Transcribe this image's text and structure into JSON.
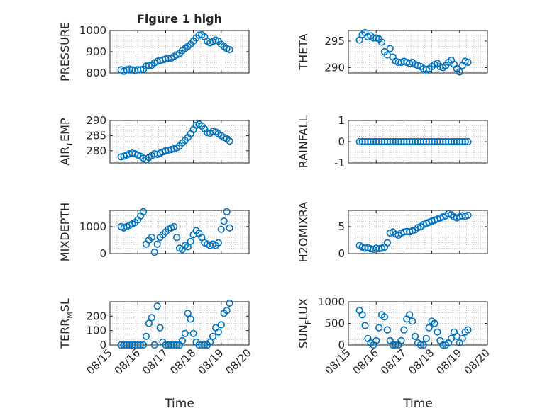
{
  "figure": {
    "title": "Figure 1 high",
    "xlabel": "Time"
  },
  "colors": {
    "marker": "#0072BD",
    "axis": "#262626",
    "grid": "#b0b0b0"
  },
  "chart_data": [
    {
      "type": "scatter",
      "title": "Figure 1 high",
      "ylabel": "PRESSURE",
      "ylabel_sub": "",
      "xlim": [
        0,
        5
      ],
      "ylim": [
        800,
        1000
      ],
      "yticks": [
        800,
        900,
        1000
      ],
      "xticks": [
        0,
        1,
        2,
        3,
        4,
        5
      ],
      "xticklabels": [
        "08/15",
        "08/16",
        "08/17",
        "08/18",
        "08/19",
        "08/20"
      ],
      "grid": true,
      "marker": "open-circle",
      "x": [
        0.4,
        0.5,
        0.6,
        0.7,
        0.8,
        0.9,
        1.0,
        1.1,
        1.2,
        1.3,
        1.4,
        1.5,
        1.6,
        1.7,
        1.8,
        1.9,
        2.0,
        2.1,
        2.2,
        2.3,
        2.4,
        2.5,
        2.6,
        2.7,
        2.8,
        2.9,
        3.0,
        3.1,
        3.2,
        3.3,
        3.4,
        3.5,
        3.6,
        3.7,
        3.8,
        3.9,
        4.0,
        4.1,
        4.2,
        4.3
      ],
      "y": [
        815,
        808,
        815,
        818,
        815,
        812,
        816,
        815,
        818,
        832,
        835,
        836,
        848,
        855,
        858,
        862,
        866,
        870,
        870,
        878,
        885,
        892,
        905,
        915,
        925,
        935,
        950,
        965,
        978,
        980,
        970,
        950,
        942,
        948,
        955,
        950,
        935,
        925,
        915,
        910
      ]
    },
    {
      "type": "scatter",
      "title": "",
      "ylabel": "THETA",
      "ylabel_sub": "",
      "xlim": [
        0,
        5
      ],
      "ylim": [
        289,
        297
      ],
      "yticks": [
        290,
        295
      ],
      "xticks": [
        0,
        1,
        2,
        3,
        4,
        5
      ],
      "xticklabels": [
        "08/15",
        "08/16",
        "08/17",
        "08/18",
        "08/19",
        "08/20"
      ],
      "grid": true,
      "marker": "open-circle",
      "x": [
        0.4,
        0.5,
        0.6,
        0.7,
        0.8,
        0.9,
        1.0,
        1.1,
        1.2,
        1.3,
        1.4,
        1.5,
        1.6,
        1.7,
        1.8,
        1.9,
        2.0,
        2.1,
        2.2,
        2.3,
        2.4,
        2.5,
        2.6,
        2.7,
        2.8,
        2.9,
        3.0,
        3.1,
        3.2,
        3.3,
        3.4,
        3.5,
        3.6,
        3.7,
        3.8,
        3.9,
        4.0,
        4.1,
        4.2,
        4.3
      ],
      "y": [
        295.2,
        296.2,
        296.6,
        295.8,
        296.0,
        295.6,
        295.6,
        295.4,
        294.8,
        293.0,
        292.4,
        293.6,
        292.0,
        291.2,
        291.0,
        291.0,
        291.2,
        291.0,
        290.8,
        291.0,
        290.6,
        290.4,
        290.2,
        289.8,
        289.6,
        289.8,
        290.2,
        290.6,
        290.8,
        290.2,
        290.0,
        290.4,
        291.0,
        291.4,
        290.6,
        289.8,
        289.2,
        290.4,
        291.2,
        291.0
      ]
    },
    {
      "type": "scatter",
      "title": "",
      "ylabel": "AIR",
      "ylabel_sub": "T",
      "ylabel_rest": "EMP",
      "xlim": [
        0,
        5
      ],
      "ylim": [
        276,
        290
      ],
      "yticks": [
        280,
        285,
        290
      ],
      "xticks": [
        0,
        1,
        2,
        3,
        4,
        5
      ],
      "xticklabels": [
        "08/15",
        "08/16",
        "08/17",
        "08/18",
        "08/19",
        "08/20"
      ],
      "grid": true,
      "marker": "open-circle",
      "x": [
        0.4,
        0.5,
        0.6,
        0.7,
        0.8,
        0.9,
        1.0,
        1.1,
        1.2,
        1.3,
        1.4,
        1.5,
        1.6,
        1.7,
        1.8,
        1.9,
        2.0,
        2.1,
        2.2,
        2.3,
        2.4,
        2.5,
        2.6,
        2.7,
        2.8,
        2.9,
        3.0,
        3.1,
        3.2,
        3.3,
        3.4,
        3.5,
        3.6,
        3.7,
        3.8,
        3.9,
        4.0,
        4.1,
        4.2,
        4.3
      ],
      "y": [
        278.0,
        278.2,
        278.6,
        279.0,
        279.2,
        279.0,
        278.6,
        278.2,
        277.6,
        277.0,
        277.8,
        278.4,
        279.0,
        278.8,
        279.2,
        279.6,
        280.0,
        280.2,
        280.4,
        280.6,
        281.0,
        281.6,
        282.6,
        283.4,
        284.4,
        285.6,
        287.0,
        288.4,
        288.8,
        288.2,
        287.2,
        286.0,
        285.8,
        286.4,
        286.2,
        285.6,
        285.0,
        284.4,
        284.0,
        283.2
      ]
    },
    {
      "type": "scatter",
      "title": "",
      "ylabel": "RAINFALL",
      "ylabel_sub": "",
      "xlim": [
        0,
        5
      ],
      "ylim": [
        -1,
        1
      ],
      "yticks": [
        -1,
        0,
        1
      ],
      "xticks": [
        0,
        1,
        2,
        3,
        4,
        5
      ],
      "xticklabels": [
        "08/15",
        "08/16",
        "08/17",
        "08/18",
        "08/19",
        "08/20"
      ],
      "grid": true,
      "marker": "open-circle",
      "x": [
        0.4,
        0.5,
        0.6,
        0.7,
        0.8,
        0.9,
        1.0,
        1.1,
        1.2,
        1.3,
        1.4,
        1.5,
        1.6,
        1.7,
        1.8,
        1.9,
        2.0,
        2.1,
        2.2,
        2.3,
        2.4,
        2.5,
        2.6,
        2.7,
        2.8,
        2.9,
        3.0,
        3.1,
        3.2,
        3.3,
        3.4,
        3.5,
        3.6,
        3.7,
        3.8,
        3.9,
        4.0,
        4.1,
        4.2,
        4.3
      ],
      "y": [
        0,
        0,
        0,
        0,
        0,
        0,
        0,
        0,
        0,
        0,
        0,
        0,
        0,
        0,
        0,
        0,
        0,
        0,
        0,
        0,
        0,
        0,
        0,
        0,
        0,
        0,
        0,
        0,
        0,
        0,
        0,
        0,
        0,
        0,
        0,
        0,
        0,
        0,
        0,
        0
      ]
    },
    {
      "type": "scatter",
      "title": "",
      "ylabel": "MIXDEPTH",
      "ylabel_sub": "",
      "xlim": [
        0,
        5
      ],
      "ylim": [
        0,
        1600
      ],
      "yticks": [
        0,
        1000
      ],
      "xticks": [
        0,
        1,
        2,
        3,
        4,
        5
      ],
      "xticklabels": [
        "08/15",
        "08/16",
        "08/17",
        "08/18",
        "08/19",
        "08/20"
      ],
      "grid": true,
      "marker": "open-circle",
      "x": [
        0.4,
        0.5,
        0.6,
        0.7,
        0.8,
        0.9,
        1.0,
        1.1,
        1.2,
        1.3,
        1.4,
        1.5,
        1.6,
        1.7,
        1.8,
        1.9,
        2.0,
        2.1,
        2.2,
        2.3,
        2.4,
        2.5,
        2.6,
        2.7,
        2.8,
        2.9,
        3.0,
        3.1,
        3.2,
        3.3,
        3.4,
        3.5,
        3.6,
        3.7,
        3.8,
        3.9,
        4.0,
        4.1,
        4.2,
        4.3
      ],
      "y": [
        1000,
        950,
        1000,
        1050,
        1100,
        1150,
        1250,
        1400,
        1550,
        350,
        500,
        600,
        50,
        350,
        600,
        700,
        800,
        900,
        950,
        1000,
        600,
        200,
        150,
        300,
        250,
        450,
        700,
        850,
        750,
        600,
        400,
        350,
        300,
        350,
        300,
        400,
        900,
        1200,
        1550,
        950
      ]
    },
    {
      "type": "scatter",
      "title": "",
      "ylabel": "H2OMIXRA",
      "ylabel_sub": "",
      "xlim": [
        0,
        5
      ],
      "ylim": [
        0,
        8
      ],
      "yticks": [
        0,
        5
      ],
      "xticks": [
        0,
        1,
        2,
        3,
        4,
        5
      ],
      "xticklabels": [
        "08/15",
        "08/16",
        "08/17",
        "08/18",
        "08/19",
        "08/20"
      ],
      "grid": true,
      "marker": "open-circle",
      "x": [
        0.4,
        0.5,
        0.6,
        0.7,
        0.8,
        0.9,
        1.0,
        1.1,
        1.2,
        1.3,
        1.4,
        1.5,
        1.6,
        1.7,
        1.8,
        1.9,
        2.0,
        2.1,
        2.2,
        2.3,
        2.4,
        2.5,
        2.6,
        2.7,
        2.8,
        2.9,
        3.0,
        3.1,
        3.2,
        3.3,
        3.4,
        3.5,
        3.6,
        3.7,
        3.8,
        3.9,
        4.0,
        4.1,
        4.2,
        4.3
      ],
      "y": [
        1.5,
        1.2,
        1.0,
        1.1,
        0.9,
        0.8,
        1.0,
        0.9,
        1.0,
        1.2,
        2.0,
        3.8,
        4.0,
        3.6,
        3.4,
        3.8,
        4.0,
        4.1,
        4.0,
        4.2,
        4.4,
        4.8,
        5.0,
        5.4,
        5.6,
        5.8,
        6.0,
        6.2,
        6.4,
        6.6,
        6.8,
        7.0,
        7.4,
        7.2,
        6.8,
        6.6,
        6.8,
        7.0,
        6.9,
        7.1
      ]
    },
    {
      "type": "scatter",
      "title": "",
      "ylabel": "TERR",
      "ylabel_sub": "M",
      "ylabel_rest": "SL",
      "xlim": [
        0,
        5
      ],
      "ylim": [
        0,
        300
      ],
      "yticks": [
        0,
        100,
        200
      ],
      "xticks": [
        0,
        1,
        2,
        3,
        4,
        5
      ],
      "xticklabels": [
        "08/15",
        "08/16",
        "08/17",
        "08/18",
        "08/19",
        "08/20"
      ],
      "grid": true,
      "marker": "open-circle",
      "x": [
        0.4,
        0.5,
        0.6,
        0.7,
        0.8,
        0.9,
        1.0,
        1.1,
        1.2,
        1.3,
        1.4,
        1.5,
        1.6,
        1.7,
        1.8,
        1.9,
        2.0,
        2.1,
        2.2,
        2.3,
        2.4,
        2.5,
        2.6,
        2.7,
        2.8,
        2.9,
        3.0,
        3.1,
        3.2,
        3.3,
        3.4,
        3.5,
        3.6,
        3.7,
        3.8,
        3.9,
        4.0,
        4.1,
        4.2,
        4.3
      ],
      "y": [
        0,
        0,
        0,
        0,
        0,
        0,
        0,
        0,
        0,
        60,
        150,
        190,
        0,
        270,
        120,
        20,
        0,
        0,
        0,
        0,
        0,
        0,
        30,
        80,
        220,
        180,
        80,
        20,
        0,
        0,
        0,
        0,
        20,
        60,
        120,
        90,
        140,
        220,
        240,
        290
      ]
    },
    {
      "type": "scatter",
      "title": "",
      "ylabel": "SUN",
      "ylabel_sub": "F",
      "ylabel_rest": "LUX",
      "xlim": [
        0,
        5
      ],
      "ylim": [
        0,
        1000
      ],
      "yticks": [
        0,
        500,
        1000
      ],
      "xticks": [
        0,
        1,
        2,
        3,
        4,
        5
      ],
      "xticklabels": [
        "08/15",
        "08/16",
        "08/17",
        "08/18",
        "08/19",
        "08/20"
      ],
      "grid": true,
      "marker": "open-circle",
      "x": [
        0.4,
        0.5,
        0.6,
        0.7,
        0.8,
        0.9,
        1.0,
        1.1,
        1.2,
        1.3,
        1.4,
        1.5,
        1.6,
        1.7,
        1.8,
        1.9,
        2.0,
        2.1,
        2.2,
        2.3,
        2.4,
        2.5,
        2.6,
        2.7,
        2.8,
        2.9,
        3.0,
        3.1,
        3.2,
        3.3,
        3.4,
        3.5,
        3.6,
        3.7,
        3.8,
        3.9,
        4.0,
        4.1,
        4.2,
        4.3
      ],
      "y": [
        800,
        700,
        450,
        150,
        50,
        0,
        100,
        400,
        700,
        650,
        350,
        100,
        0,
        0,
        0,
        100,
        350,
        600,
        700,
        550,
        200,
        50,
        0,
        0,
        150,
        400,
        550,
        500,
        300,
        100,
        0,
        0,
        50,
        150,
        300,
        200,
        50,
        150,
        300,
        350
      ]
    }
  ]
}
